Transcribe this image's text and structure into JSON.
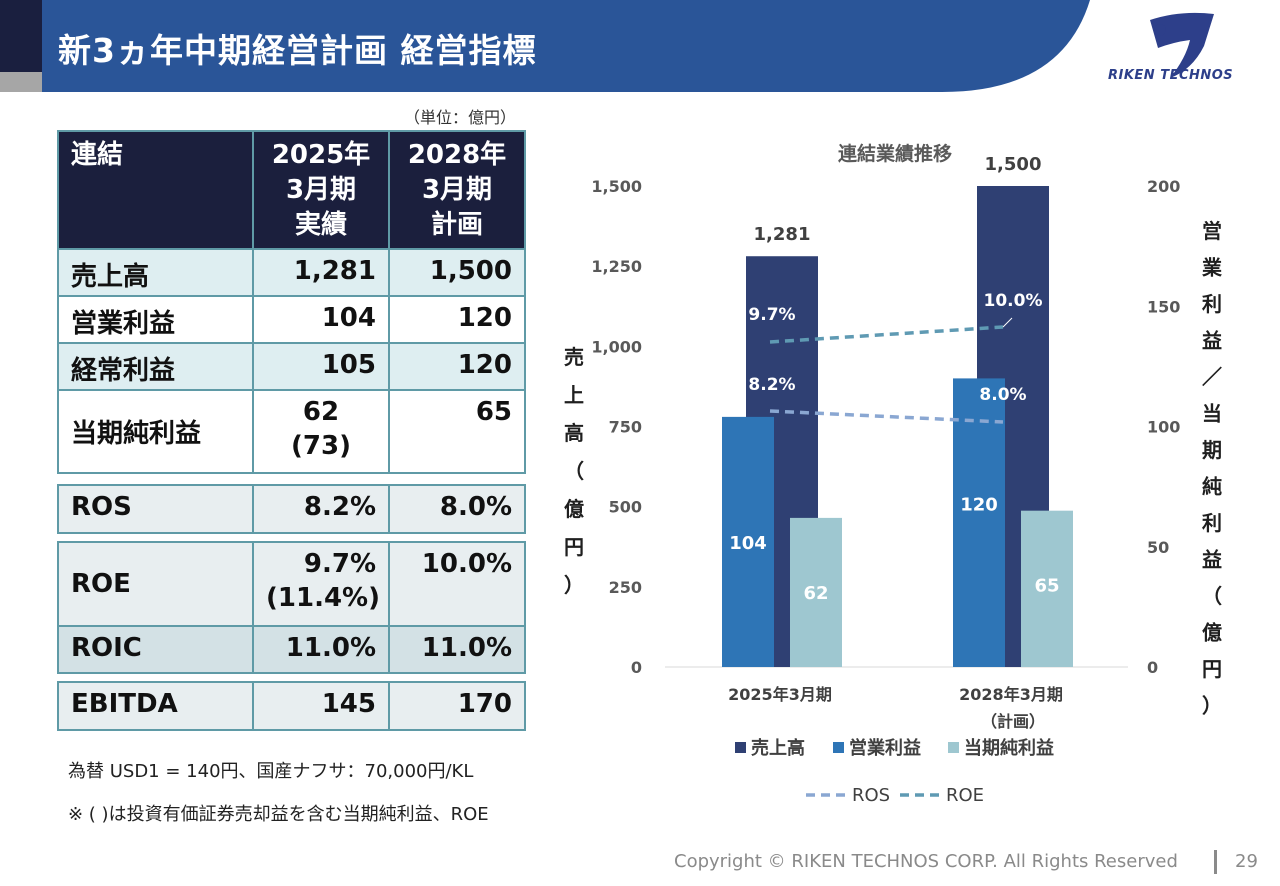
{
  "header": {
    "title": "新3ヵ年中期経営計画 経営指標",
    "logo_text": "RIKEN TECHNOS"
  },
  "table": {
    "unit_note": "（単位：億円）",
    "head_label": "連結",
    "col1": [
      "2025年",
      "3月期",
      "実績"
    ],
    "col2": [
      "2028年",
      "3月期",
      "計画"
    ],
    "rows": [
      {
        "label": "売上高",
        "v1": "1,281",
        "v2": "1,500"
      },
      {
        "label": "営業利益",
        "v1": "104",
        "v2": "120"
      },
      {
        "label": "経常利益",
        "v1": "105",
        "v2": "120"
      },
      {
        "label": "当期純利益",
        "v1": "62",
        "v1b": "(73)",
        "v2": "65"
      },
      {
        "label": "ROS",
        "v1": "8.2%",
        "v2": "8.0%"
      },
      {
        "label": "ROE",
        "v1": "9.7%",
        "v1b": "(11.4%)",
        "v2": "10.0%"
      },
      {
        "label": "ROIC",
        "v1": "11.0%",
        "v2": "11.0%"
      },
      {
        "label": "EBITDA",
        "v1": "145",
        "v2": "170"
      }
    ]
  },
  "notes": {
    "fx": "為替 USD1 = 140円、国産ナフサ：70,000円/KL",
    "paren": "※ ( )は投資有価証券売却益を含む当期純利益、ROE"
  },
  "footer": {
    "copyright": "Copyright © RIKEN TECHNOS CORP. All Rights Reserved",
    "page": "29"
  },
  "chart_data": {
    "type": "bar",
    "title": "連結業績推移",
    "categories": [
      "2025年3月期",
      "2028年3月期"
    ],
    "category_sub": [
      "",
      "（計画）"
    ],
    "ylabel_left": "売上高（億円）",
    "ylabel_right": "営業利益／当期純利益（億円）",
    "ylim_left": [
      0,
      1500
    ],
    "yticks_left": [
      "0",
      "250",
      "500",
      "750",
      "1,000",
      "1,250",
      "1,500"
    ],
    "ylim_right": [
      0,
      200
    ],
    "yticks_right": [
      "0",
      "50",
      "100",
      "150",
      "200"
    ],
    "series": [
      {
        "name": "売上高",
        "axis": "left",
        "values": [
          1281,
          1500
        ],
        "labels": [
          "1,281",
          "1,500"
        ],
        "color": "#2f4073"
      },
      {
        "name": "営業利益",
        "axis": "right",
        "values": [
          104,
          120
        ],
        "labels": [
          "104",
          "120"
        ],
        "color": "#2e75b6"
      },
      {
        "name": "当期純利益",
        "axis": "right",
        "values": [
          62,
          65
        ],
        "labels": [
          "62",
          "65"
        ],
        "color": "#9ec7d0"
      }
    ],
    "lines": [
      {
        "name": "ROS",
        "values": [
          8.2,
          8.0
        ],
        "labels": [
          "8.2%",
          "8.0%"
        ],
        "color": "#8aa7d2"
      },
      {
        "name": "ROE",
        "values": [
          9.7,
          10.0
        ],
        "labels": [
          "9.7%",
          "10.0%"
        ],
        "color": "#5f9ab3"
      }
    ],
    "legend": "bottom"
  }
}
